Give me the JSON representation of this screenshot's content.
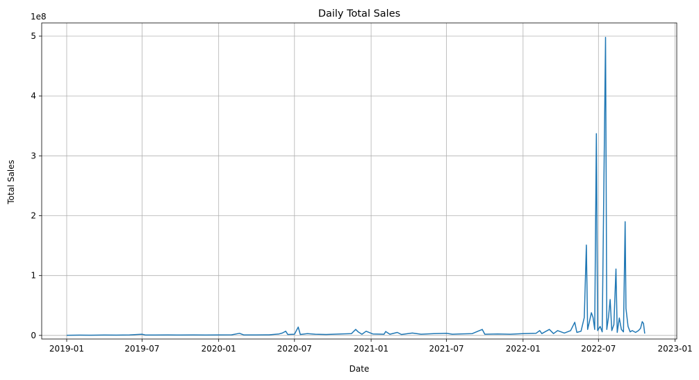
{
  "chart_data": {
    "type": "line",
    "title": "Daily Total Sales",
    "xlabel": "Date",
    "ylabel": "Total Sales",
    "y_offset_label": "1e8",
    "y_scale": 100000000,
    "xlim": [
      "2018-11-02",
      "2023-01-05"
    ],
    "ylim": [
      -6000000,
      522000000
    ],
    "grid": true,
    "line_color": "#1f77b4",
    "x_ticks": [
      {
        "date": "2019-01-01",
        "label": "2019-01"
      },
      {
        "date": "2019-07-01",
        "label": "2019-07"
      },
      {
        "date": "2020-01-01",
        "label": "2020-01"
      },
      {
        "date": "2020-07-01",
        "label": "2020-07"
      },
      {
        "date": "2021-01-01",
        "label": "2021-01"
      },
      {
        "date": "2021-07-01",
        "label": "2021-07"
      },
      {
        "date": "2022-01-01",
        "label": "2022-01"
      },
      {
        "date": "2022-07-01",
        "label": "2022-07"
      },
      {
        "date": "2023-01-01",
        "label": "2023-01"
      }
    ],
    "y_ticks": [
      {
        "value": 0,
        "label": "0"
      },
      {
        "value": 100000000,
        "label": "1"
      },
      {
        "value": 200000000,
        "label": "2"
      },
      {
        "value": 300000000,
        "label": "3"
      },
      {
        "value": 400000000,
        "label": "4"
      },
      {
        "value": 500000000,
        "label": "5"
      }
    ],
    "series": [
      {
        "values": [
          [
            "2019-01-01",
            300000
          ],
          [
            "2019-02-01",
            500000
          ],
          [
            "2019-03-01",
            400000
          ],
          [
            "2019-04-01",
            600000
          ],
          [
            "2019-05-01",
            500000
          ],
          [
            "2019-06-01",
            800000
          ],
          [
            "2019-07-01",
            2000000
          ],
          [
            "2019-07-10",
            600000
          ],
          [
            "2019-08-01",
            700000
          ],
          [
            "2019-09-01",
            900000
          ],
          [
            "2019-10-01",
            600000
          ],
          [
            "2019-11-01",
            800000
          ],
          [
            "2019-12-01",
            700000
          ],
          [
            "2020-01-01",
            900000
          ],
          [
            "2020-02-01",
            1000000
          ],
          [
            "2020-02-20",
            3500000
          ],
          [
            "2020-03-01",
            800000
          ],
          [
            "2020-04-01",
            900000
          ],
          [
            "2020-05-01",
            1000000
          ],
          [
            "2020-05-25",
            2500000
          ],
          [
            "2020-06-02",
            4000000
          ],
          [
            "2020-06-10",
            7000000
          ],
          [
            "2020-06-15",
            1500000
          ],
          [
            "2020-07-01",
            2000000
          ],
          [
            "2020-07-10",
            14000000
          ],
          [
            "2020-07-15",
            1500000
          ],
          [
            "2020-08-01",
            3000000
          ],
          [
            "2020-08-20",
            2000000
          ],
          [
            "2020-09-15",
            1500000
          ],
          [
            "2020-10-20",
            2500000
          ],
          [
            "2020-11-15",
            3000000
          ],
          [
            "2020-11-25",
            10000000
          ],
          [
            "2020-12-01",
            6000000
          ],
          [
            "2020-12-10",
            2000000
          ],
          [
            "2020-12-20",
            7000000
          ],
          [
            "2021-01-05",
            2500000
          ],
          [
            "2021-02-01",
            2000000
          ],
          [
            "2021-02-05",
            6500000
          ],
          [
            "2021-02-15",
            2000000
          ],
          [
            "2021-03-05",
            5000000
          ],
          [
            "2021-03-15",
            1500000
          ],
          [
            "2021-04-10",
            4000000
          ],
          [
            "2021-05-01",
            2000000
          ],
          [
            "2021-06-01",
            3000000
          ],
          [
            "2021-07-01",
            3500000
          ],
          [
            "2021-07-15",
            2000000
          ],
          [
            "2021-08-01",
            2500000
          ],
          [
            "2021-09-01",
            3000000
          ],
          [
            "2021-09-25",
            10000000
          ],
          [
            "2021-10-01",
            2000000
          ],
          [
            "2021-11-01",
            2500000
          ],
          [
            "2021-12-01",
            2000000
          ],
          [
            "2022-01-01",
            3000000
          ],
          [
            "2022-02-01",
            3500000
          ],
          [
            "2022-02-10",
            8000000
          ],
          [
            "2022-02-15",
            3000000
          ],
          [
            "2022-03-05",
            10000000
          ],
          [
            "2022-03-15",
            3000000
          ],
          [
            "2022-03-25",
            8000000
          ],
          [
            "2022-04-10",
            4000000
          ],
          [
            "2022-04-25",
            8000000
          ],
          [
            "2022-05-05",
            22000000
          ],
          [
            "2022-05-10",
            5000000
          ],
          [
            "2022-05-20",
            7000000
          ],
          [
            "2022-05-28",
            30000000
          ],
          [
            "2022-06-02",
            151000000
          ],
          [
            "2022-06-05",
            10000000
          ],
          [
            "2022-06-10",
            25000000
          ],
          [
            "2022-06-14",
            38000000
          ],
          [
            "2022-06-18",
            30000000
          ],
          [
            "2022-06-22",
            10000000
          ],
          [
            "2022-06-26",
            337000000
          ],
          [
            "2022-06-29",
            8000000
          ],
          [
            "2022-07-05",
            15000000
          ],
          [
            "2022-07-10",
            6000000
          ],
          [
            "2022-07-18",
            498000000
          ],
          [
            "2022-07-21",
            10000000
          ],
          [
            "2022-07-25",
            30000000
          ],
          [
            "2022-07-29",
            60000000
          ],
          [
            "2022-08-02",
            8000000
          ],
          [
            "2022-08-07",
            18000000
          ],
          [
            "2022-08-12",
            111000000
          ],
          [
            "2022-08-15",
            5000000
          ],
          [
            "2022-08-20",
            29000000
          ],
          [
            "2022-08-25",
            10000000
          ],
          [
            "2022-08-30",
            6000000
          ],
          [
            "2022-09-03",
            190000000
          ],
          [
            "2022-09-05",
            45000000
          ],
          [
            "2022-09-10",
            15000000
          ],
          [
            "2022-09-15",
            6000000
          ],
          [
            "2022-09-20",
            8000000
          ],
          [
            "2022-09-28",
            5000000
          ],
          [
            "2022-10-05",
            8000000
          ],
          [
            "2022-10-10",
            12000000
          ],
          [
            "2022-10-14",
            23000000
          ],
          [
            "2022-10-17",
            20000000
          ],
          [
            "2022-10-20",
            3000000
          ]
        ]
      }
    ]
  }
}
